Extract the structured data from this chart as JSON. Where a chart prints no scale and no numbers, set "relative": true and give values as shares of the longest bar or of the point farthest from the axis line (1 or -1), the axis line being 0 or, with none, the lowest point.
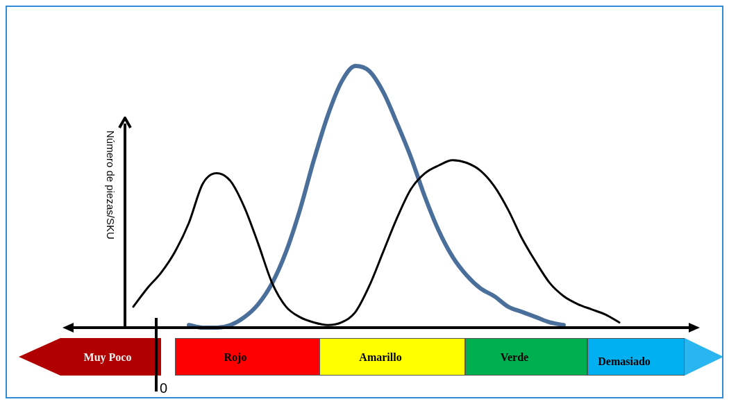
{
  "chart_data": {
    "type": "line",
    "relative": true,
    "ylabel": "Número de piezas/SKU",
    "categories": [
      null,
      null,
      null,
      null,
      null,
      null,
      null,
      null,
      null,
      null,
      null,
      null,
      null,
      null,
      null,
      null,
      null,
      null,
      null,
      null,
      null,
      null,
      null,
      null,
      null,
      null,
      null,
      null,
      null,
      null,
      null,
      null,
      null,
      null,
      null,
      null,
      null,
      null,
      null,
      null,
      null,
      null,
      null,
      null,
      null,
      null
    ],
    "series": [
      {
        "color": "#000000",
        "values": [
          null,
          null,
          null,
          null,
          null,
          0.08,
          0.15,
          0.21,
          0.29,
          0.4,
          0.55,
          0.59,
          0.56,
          0.46,
          0.32,
          0.17,
          0.08,
          0.04,
          0.02,
          0.01,
          0.02,
          0.06,
          0.16,
          0.29,
          0.42,
          0.53,
          0.59,
          0.62,
          0.64,
          0.63,
          0.6,
          0.54,
          0.45,
          0.34,
          0.25,
          0.17,
          0.12,
          0.09,
          0.07,
          0.05,
          0.02,
          null,
          null,
          null,
          null,
          null
        ]
      },
      {
        "color": "#4a6f9a",
        "values": [
          null,
          null,
          null,
          null,
          null,
          null,
          null,
          null,
          null,
          0.01,
          0,
          0,
          0.01,
          0.04,
          0.09,
          0.17,
          0.29,
          0.45,
          0.64,
          0.81,
          0.94,
          1,
          0.98,
          0.9,
          0.78,
          0.65,
          0.5,
          0.37,
          0.27,
          0.2,
          0.15,
          0.12,
          0.08,
          0.06,
          0.04,
          0.02,
          0.01,
          null,
          null,
          null,
          null,
          null,
          null,
          null,
          null,
          null
        ]
      }
    ],
    "annotations": [
      "0",
      "Muy Poco",
      "Rojo",
      "Amarillo",
      "Verde",
      "Demasiado"
    ],
    "marker": "none",
    "line_style": "solid"
  }
}
